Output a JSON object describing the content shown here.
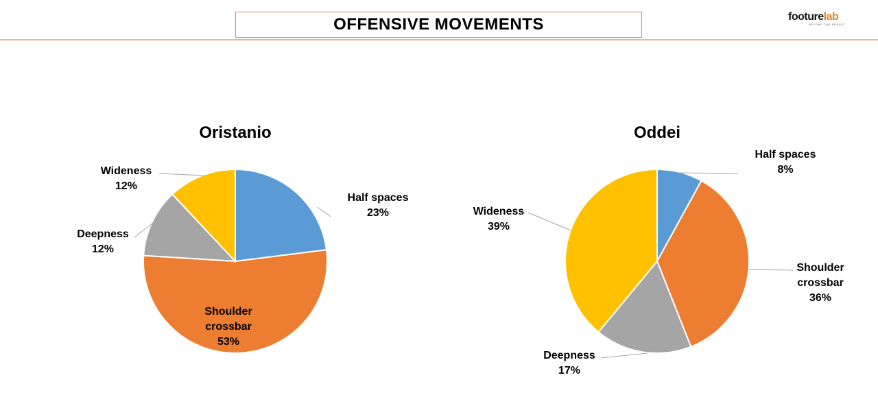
{
  "header": {
    "title": "OFFENSIVE MOVEMENTS"
  },
  "logo": {
    "text_primary": "footure",
    "text_accent": "lab",
    "tagline": "BEYOND THE RESULT"
  },
  "colors": {
    "accent": "#e0812a",
    "header_line": "#f2b38a",
    "title_border": "#d98b52"
  },
  "chart_data": [
    {
      "type": "pie",
      "title": "Oristanio",
      "series": [
        {
          "name": "Half spaces",
          "value": 23,
          "label": "23%",
          "color": "#5b9bd5"
        },
        {
          "name": "Shoulder crossbar",
          "value": 53,
          "label": "53%",
          "color": "#ed7d31"
        },
        {
          "name": "Deepness",
          "value": 12,
          "label": "12%",
          "color": "#a5a5a5"
        },
        {
          "name": "Wideness",
          "value": 12,
          "label": "12%",
          "color": "#ffc000"
        }
      ]
    },
    {
      "type": "pie",
      "title": "Oddei",
      "series": [
        {
          "name": "Half spaces",
          "value": 8,
          "label": "8%",
          "color": "#5b9bd5"
        },
        {
          "name": "Shoulder crossbar",
          "value": 36,
          "label": "36%",
          "color": "#ed7d31"
        },
        {
          "name": "Deepness",
          "value": 17,
          "label": "17%",
          "color": "#a5a5a5"
        },
        {
          "name": "Wideness",
          "value": 39,
          "label": "39%",
          "color": "#ffc000"
        }
      ]
    }
  ]
}
